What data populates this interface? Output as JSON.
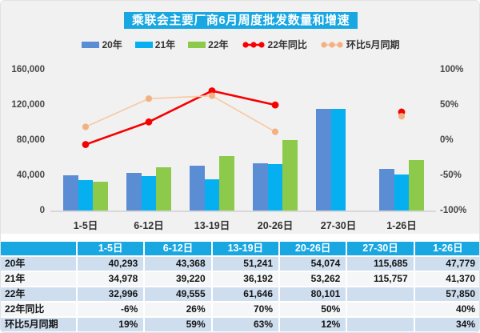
{
  "chart_data": {
    "type": "bar+line",
    "title": "乘联会主要厂商6月周度批发数量和增速",
    "categories": [
      "1-5日",
      "6-12日",
      "13-19日",
      "20-26日",
      "27-30日",
      "1-26日"
    ],
    "bar_series": [
      {
        "name": "20年",
        "color": "#5b8dd5",
        "values": [
          40293,
          43368,
          51241,
          54074,
          115685,
          47779
        ]
      },
      {
        "name": "21年",
        "color": "#06b0f0",
        "values": [
          34978,
          39220,
          36192,
          53262,
          115757,
          41370
        ]
      },
      {
        "name": "22年",
        "color": "#8dc94a",
        "values": [
          32996,
          49555,
          61646,
          80101,
          null,
          57850
        ]
      }
    ],
    "line_series": [
      {
        "name": "22年同比",
        "line_color": "#f60000",
        "marker_color": "#f60000",
        "axis": "right",
        "values_pct": [
          -6,
          26,
          70,
          50,
          null,
          40
        ]
      },
      {
        "name": "环比5月同期",
        "line_color": "#f8caa4",
        "marker_color": "#f3b181",
        "axis": "right",
        "values_pct": [
          19,
          59,
          63,
          12,
          null,
          34
        ]
      }
    ],
    "left_axis": {
      "min": 0,
      "max": 160000,
      "tick_labels": [
        "0",
        "40,000",
        "80,000",
        "120,000",
        "160,000"
      ]
    },
    "right_axis": {
      "min": -100,
      "max": 100,
      "tick_labels": [
        "-100%",
        "-50%",
        "0%",
        "50%",
        "100%"
      ]
    },
    "grid": false,
    "legend_position": "top"
  },
  "table": {
    "header": [
      "",
      "1-5日",
      "6-12日",
      "13-19日",
      "20-26日",
      "27-30日",
      "1-26日"
    ],
    "rows": [
      {
        "label": "20年",
        "cells": [
          "40,293",
          "43,368",
          "51,241",
          "54,074",
          "115,685",
          "47,779"
        ]
      },
      {
        "label": "21年",
        "cells": [
          "34,978",
          "39,220",
          "36,192",
          "53,262",
          "115,757",
          "41,370"
        ]
      },
      {
        "label": "22年",
        "cells": [
          "32,996",
          "49,555",
          "61,646",
          "80,101",
          "",
          "57,850"
        ]
      },
      {
        "label": "22年同比",
        "cells": [
          "-6%",
          "26%",
          "70%",
          "50%",
          "",
          "40%"
        ]
      },
      {
        "label": "环比5月同期",
        "cells": [
          "19%",
          "59%",
          "63%",
          "12%",
          "",
          "34%"
        ]
      }
    ]
  },
  "colors": {
    "title_bg": "#19a7e2",
    "table_header_bg": "#19a7e2",
    "table_row_alt_bg": "#cfdeef",
    "table_row_bg": "#f5f6f8",
    "chart_bg": "#f1f1f2",
    "axis_text": "#474747"
  }
}
